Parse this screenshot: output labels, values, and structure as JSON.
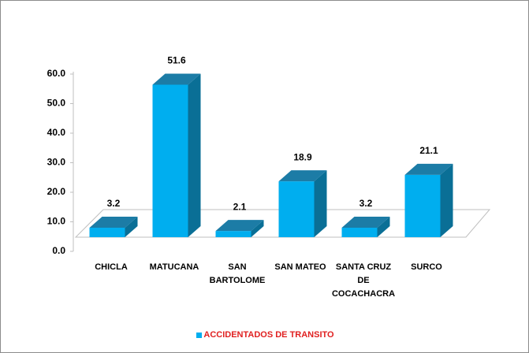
{
  "chart_data": {
    "type": "bar3d",
    "categories": [
      "CHICLA",
      "MATUCANA",
      "SAN BARTOLOME",
      "SAN MATEO",
      "SANTA CRUZ DE COCACHACRA",
      "SURCO"
    ],
    "series": [
      {
        "name": "ACCIDENTADOS DE TRANSITO",
        "color": "#00aeef",
        "values": [
          3.2,
          51.6,
          2.1,
          18.9,
          3.2,
          21.1
        ]
      }
    ],
    "ylim": [
      0,
      60
    ],
    "yticks": [
      {
        "value": 0,
        "label": "0.0"
      },
      {
        "value": 10,
        "label": "10.0"
      },
      {
        "value": 20,
        "label": "20.0"
      },
      {
        "value": 30,
        "label": "30.0"
      },
      {
        "value": 40,
        "label": "40.0"
      },
      {
        "value": 50,
        "label": "50.0"
      },
      {
        "value": 60,
        "label": "60.0"
      }
    ],
    "legend": "bottom"
  }
}
